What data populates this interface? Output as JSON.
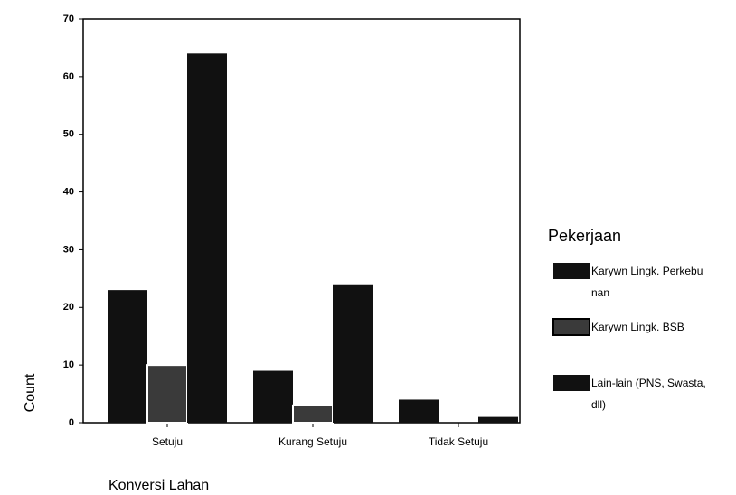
{
  "chart_data": {
    "type": "bar",
    "x_label": "Konversi Lahan",
    "y_label": "Count",
    "categories": [
      "Setuju",
      "Kurang Setuju",
      "Tidak Setuju"
    ],
    "series": [
      {
        "name": "Karywn Lingk. Perkebunan",
        "color": "#111111",
        "values": [
          23,
          9,
          4
        ]
      },
      {
        "name": "Karywn Lingk. BSB",
        "color": "#3a3a3a",
        "values": [
          10,
          3,
          0
        ]
      },
      {
        "name": "Lain-lain (PNS, Swasta, dll)",
        "color": "#111111",
        "values": [
          64,
          24,
          1
        ]
      }
    ],
    "legend_title": "Pekerjaan",
    "legend": "right",
    "ylim": [
      0,
      70
    ],
    "yticks": [
      0,
      10,
      20,
      30,
      40,
      50,
      60,
      70
    ]
  }
}
